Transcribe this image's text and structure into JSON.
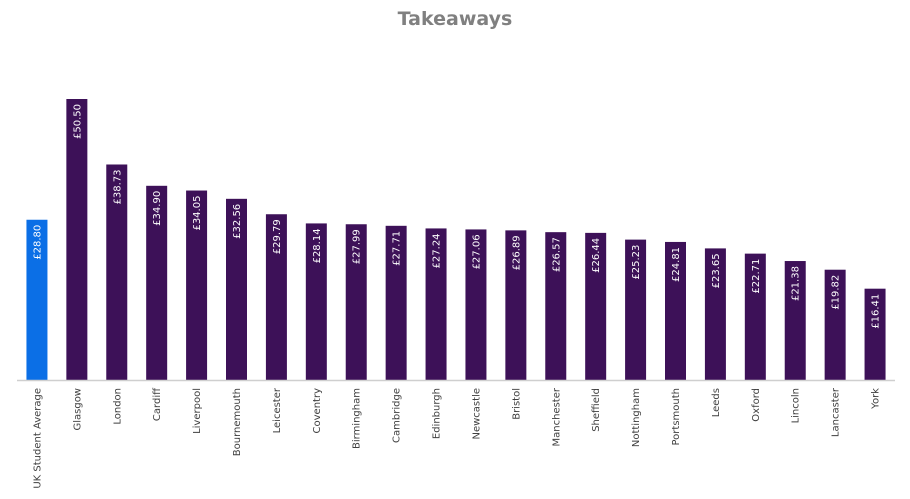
{
  "chart_data": {
    "type": "bar",
    "title": "Takeaways",
    "categories": [
      "UK Student Average",
      "Glasgow",
      "London",
      "Cardiff",
      "Liverpool",
      "Bournemouth",
      "Leicester",
      "Coventry",
      "Birmingham",
      "Cambridge",
      "Edinburgh",
      "Newcastle",
      "Bristol",
      "Manchester",
      "Sheffield",
      "Nottingham",
      "Portsmouth",
      "Leeds",
      "Oxford",
      "Lincoln",
      "Lancaster",
      "York"
    ],
    "values": [
      28.8,
      50.5,
      38.73,
      34.9,
      34.05,
      32.56,
      29.79,
      28.14,
      27.99,
      27.71,
      27.24,
      27.06,
      26.89,
      26.57,
      26.44,
      25.23,
      24.81,
      23.65,
      22.71,
      21.38,
      19.82,
      16.41
    ],
    "data_labels": [
      "£28.80",
      "£50.50",
      "£38.73",
      "£34.90",
      "£34.05",
      "£32.56",
      "£29.79",
      "£28.14",
      "£27.99",
      "£27.71",
      "£27.24",
      "£27.06",
      "£26.89",
      "£26.57",
      "£26.44",
      "£25.23",
      "£24.81",
      "£23.65",
      "£22.71",
      "£21.38",
      "£19.82",
      "£16.41"
    ],
    "xlabel": "",
    "ylabel": "",
    "ylim": [
      0,
      50.5
    ],
    "grid": false,
    "legend": "none",
    "colors": {
      "highlight": "#0b6fe6",
      "default": "#3d1158",
      "axis": "#cfcfcf"
    },
    "highlight_index": 0
  }
}
